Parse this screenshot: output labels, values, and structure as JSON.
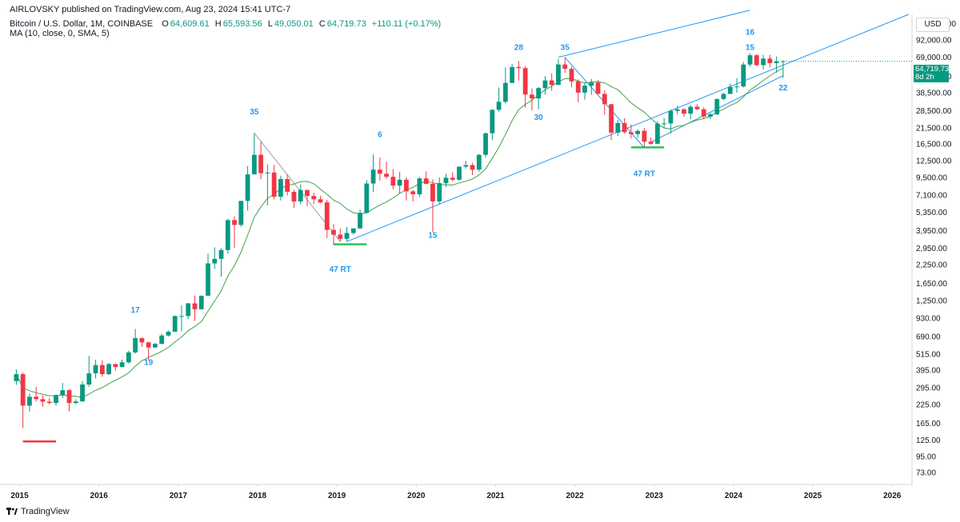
{
  "header": {
    "publisher": "AIRLOVSKY published on TradingView.com, Aug 23, 2024 15:41 UTC-7",
    "symbol": "Bitcoin / U.S. Dollar, 1M, COINBASE",
    "ohlc": [
      {
        "label": "O",
        "value": "64,609.61"
      },
      {
        "label": "H",
        "value": "65,593.56"
      },
      {
        "label": "L",
        "value": "49,050.01"
      },
      {
        "label": "C",
        "value": "64,719.73"
      },
      {
        "label": "",
        "value": "+110.11 (+0.17%)"
      }
    ],
    "indicator": "MA (10, close, 0, SMA, 5)"
  },
  "price_axis": {
    "currency": "USD",
    "current_price": "64,719.73",
    "countdown": "8d 2h",
    "current_price_color": "#089981"
  },
  "footer": {
    "brand": "TradingView"
  },
  "colors": {
    "up": "#089981",
    "down": "#f23645",
    "ma": "#43a047",
    "trendline": "#2196f3",
    "neutral_line": "#9e9e9e"
  },
  "chart_data": {
    "type": "candlestick",
    "title": "Bitcoin / U.S. Dollar, 1M, COINBASE",
    "scale": "log",
    "ylim": [
      60,
      140000
    ],
    "xlim": [
      "2014-11",
      "2026-03"
    ],
    "y_ticks": [
      "120,000.00",
      "92,000.00",
      "69,000.00",
      "50,500.00",
      "38,500.00",
      "28,500.00",
      "21,500.00",
      "16,500.00",
      "12,500.00",
      "9,500.00",
      "7,100.00",
      "5,350.00",
      "3,950.00",
      "2,950.00",
      "2,250.00",
      "1,650.00",
      "1,250.00",
      "930.00",
      "690.00",
      "515.00",
      "395.00",
      "295.00",
      "225.00",
      "165.00",
      "125.00",
      "95.00",
      "73.00"
    ],
    "y_tick_values": [
      120000,
      92000,
      69000,
      50500,
      38500,
      28500,
      21500,
      16500,
      12500,
      9500,
      7100,
      5350,
      3950,
      2950,
      2250,
      1650,
      1250,
      930,
      690,
      515,
      395,
      295,
      225,
      165,
      125,
      95,
      73
    ],
    "x_ticks": [
      "2015",
      "2016",
      "2017",
      "2018",
      "2019",
      "2020",
      "2021",
      "2022",
      "2023",
      "2024",
      "2025",
      "2026"
    ],
    "annotations": [
      {
        "text": "35",
        "date": "2017-12",
        "price": 27000,
        "color": "#2196f3"
      },
      {
        "text": "17",
        "date": "2016-06",
        "price": 1020,
        "color": "#2196f3"
      },
      {
        "text": "19",
        "date": "2016-08",
        "price": 430,
        "color": "#2196f3"
      },
      {
        "text": "6",
        "date": "2019-07",
        "price": 18500,
        "color": "#2196f3"
      },
      {
        "text": "47 RT",
        "date": "2019-01",
        "price": 2000,
        "color": "#2196f3"
      },
      {
        "text": "15",
        "date": "2020-03",
        "price": 3500,
        "color": "#2196f3"
      },
      {
        "text": "28",
        "date": "2021-04",
        "price": 78000,
        "color": "#2196f3"
      },
      {
        "text": "30",
        "date": "2021-07",
        "price": 24500,
        "color": "#2196f3"
      },
      {
        "text": "35",
        "date": "2021-11",
        "price": 78000,
        "color": "#2196f3"
      },
      {
        "text": "47 RT",
        "date": "2022-11",
        "price": 9700,
        "color": "#2196f3"
      },
      {
        "text": "16",
        "date": "2024-03",
        "price": 100000,
        "color": "#2196f3"
      },
      {
        "text": "15",
        "date": "2024-03",
        "price": 78000,
        "color": "#2196f3"
      },
      {
        "text": "22",
        "date": "2024-08",
        "price": 40000,
        "color": "#2196f3"
      }
    ],
    "candles": [
      {
        "d": "2014-12",
        "o": 330,
        "h": 400,
        "l": 310,
        "c": 370
      },
      {
        "d": "2015-01",
        "o": 370,
        "h": 380,
        "l": 152,
        "c": 220
      },
      {
        "d": "2015-02",
        "o": 220,
        "h": 270,
        "l": 200,
        "c": 255
      },
      {
        "d": "2015-03",
        "o": 255,
        "h": 300,
        "l": 235,
        "c": 245
      },
      {
        "d": "2015-04",
        "o": 245,
        "h": 260,
        "l": 215,
        "c": 235
      },
      {
        "d": "2015-05",
        "o": 235,
        "h": 250,
        "l": 225,
        "c": 230
      },
      {
        "d": "2015-06",
        "o": 230,
        "h": 265,
        "l": 220,
        "c": 262
      },
      {
        "d": "2015-07",
        "o": 262,
        "h": 320,
        "l": 250,
        "c": 284
      },
      {
        "d": "2015-08",
        "o": 284,
        "h": 290,
        "l": 200,
        "c": 230
      },
      {
        "d": "2015-09",
        "o": 230,
        "h": 245,
        "l": 225,
        "c": 236
      },
      {
        "d": "2015-10",
        "o": 236,
        "h": 330,
        "l": 235,
        "c": 312
      },
      {
        "d": "2015-11",
        "o": 312,
        "h": 500,
        "l": 300,
        "c": 375
      },
      {
        "d": "2015-12",
        "o": 375,
        "h": 470,
        "l": 345,
        "c": 430
      },
      {
        "d": "2016-01",
        "o": 430,
        "h": 465,
        "l": 355,
        "c": 370
      },
      {
        "d": "2016-02",
        "o": 370,
        "h": 445,
        "l": 365,
        "c": 437
      },
      {
        "d": "2016-03",
        "o": 437,
        "h": 440,
        "l": 392,
        "c": 416
      },
      {
        "d": "2016-04",
        "o": 416,
        "h": 470,
        "l": 415,
        "c": 450
      },
      {
        "d": "2016-05",
        "o": 450,
        "h": 545,
        "l": 440,
        "c": 530
      },
      {
        "d": "2016-06",
        "o": 530,
        "h": 780,
        "l": 520,
        "c": 670
      },
      {
        "d": "2016-07",
        "o": 670,
        "h": 680,
        "l": 580,
        "c": 625
      },
      {
        "d": "2016-08",
        "o": 625,
        "h": 630,
        "l": 465,
        "c": 575
      },
      {
        "d": "2016-09",
        "o": 575,
        "h": 620,
        "l": 570,
        "c": 610
      },
      {
        "d": "2016-10",
        "o": 610,
        "h": 720,
        "l": 605,
        "c": 700
      },
      {
        "d": "2016-11",
        "o": 700,
        "h": 760,
        "l": 690,
        "c": 745
      },
      {
        "d": "2016-12",
        "o": 745,
        "h": 975,
        "l": 740,
        "c": 965
      },
      {
        "d": "2017-01",
        "o": 965,
        "h": 1150,
        "l": 750,
        "c": 965
      },
      {
        "d": "2017-02",
        "o": 965,
        "h": 1200,
        "l": 920,
        "c": 1190
      },
      {
        "d": "2017-03",
        "o": 1190,
        "h": 1350,
        "l": 890,
        "c": 1080
      },
      {
        "d": "2017-04",
        "o": 1080,
        "h": 1350,
        "l": 1080,
        "c": 1350
      },
      {
        "d": "2017-05",
        "o": 1350,
        "h": 2700,
        "l": 1350,
        "c": 2300
      },
      {
        "d": "2017-06",
        "o": 2300,
        "h": 3000,
        "l": 2100,
        "c": 2480
      },
      {
        "d": "2017-07",
        "o": 2480,
        "h": 2950,
        "l": 1850,
        "c": 2870
      },
      {
        "d": "2017-08",
        "o": 2870,
        "h": 4800,
        "l": 2700,
        "c": 4700
      },
      {
        "d": "2017-09",
        "o": 4700,
        "h": 5000,
        "l": 2970,
        "c": 4340
      },
      {
        "d": "2017-10",
        "o": 4340,
        "h": 6450,
        "l": 4200,
        "c": 6450
      },
      {
        "d": "2017-11",
        "o": 6450,
        "h": 11500,
        "l": 5500,
        "c": 10000
      },
      {
        "d": "2017-12",
        "o": 10000,
        "h": 19800,
        "l": 10000,
        "c": 13800
      },
      {
        "d": "2018-01",
        "o": 13800,
        "h": 17200,
        "l": 9200,
        "c": 10200
      },
      {
        "d": "2018-02",
        "o": 10200,
        "h": 11800,
        "l": 6000,
        "c": 10300
      },
      {
        "d": "2018-03",
        "o": 10300,
        "h": 11700,
        "l": 6600,
        "c": 6920
      },
      {
        "d": "2018-04",
        "o": 6920,
        "h": 9800,
        "l": 6500,
        "c": 9250
      },
      {
        "d": "2018-05",
        "o": 9250,
        "h": 10000,
        "l": 7050,
        "c": 7500
      },
      {
        "d": "2018-06",
        "o": 7500,
        "h": 7750,
        "l": 5750,
        "c": 6390
      },
      {
        "d": "2018-07",
        "o": 6390,
        "h": 8500,
        "l": 6100,
        "c": 7730
      },
      {
        "d": "2018-08",
        "o": 7730,
        "h": 7750,
        "l": 5900,
        "c": 7000
      },
      {
        "d": "2018-09",
        "o": 7000,
        "h": 7400,
        "l": 6100,
        "c": 6625
      },
      {
        "d": "2018-10",
        "o": 6625,
        "h": 7000,
        "l": 6200,
        "c": 6300
      },
      {
        "d": "2018-11",
        "o": 6300,
        "h": 6550,
        "l": 3500,
        "c": 4000
      },
      {
        "d": "2018-12",
        "o": 4000,
        "h": 4400,
        "l": 3150,
        "c": 3700
      },
      {
        "d": "2019-01",
        "o": 3700,
        "h": 4100,
        "l": 3300,
        "c": 3450
      },
      {
        "d": "2019-02",
        "o": 3450,
        "h": 4200,
        "l": 3300,
        "c": 3800
      },
      {
        "d": "2019-03",
        "o": 3800,
        "h": 4100,
        "l": 3700,
        "c": 4100
      },
      {
        "d": "2019-04",
        "o": 4100,
        "h": 5600,
        "l": 4050,
        "c": 5300
      },
      {
        "d": "2019-05",
        "o": 5300,
        "h": 9100,
        "l": 5300,
        "c": 8600
      },
      {
        "d": "2019-06",
        "o": 8600,
        "h": 13900,
        "l": 7500,
        "c": 10800
      },
      {
        "d": "2019-07",
        "o": 10800,
        "h": 13200,
        "l": 9000,
        "c": 10100
      },
      {
        "d": "2019-08",
        "o": 10100,
        "h": 12300,
        "l": 9300,
        "c": 9600
      },
      {
        "d": "2019-09",
        "o": 9600,
        "h": 10900,
        "l": 7800,
        "c": 8300
      },
      {
        "d": "2019-10",
        "o": 8300,
        "h": 10400,
        "l": 7300,
        "c": 9150
      },
      {
        "d": "2019-11",
        "o": 9150,
        "h": 9500,
        "l": 6500,
        "c": 7550
      },
      {
        "d": "2019-12",
        "o": 7550,
        "h": 7750,
        "l": 6400,
        "c": 7200
      },
      {
        "d": "2020-01",
        "o": 7200,
        "h": 9600,
        "l": 6900,
        "c": 9350
      },
      {
        "d": "2020-02",
        "o": 9350,
        "h": 10500,
        "l": 8500,
        "c": 8550
      },
      {
        "d": "2020-03",
        "o": 8550,
        "h": 9200,
        "l": 3850,
        "c": 6400
      },
      {
        "d": "2020-04",
        "o": 6400,
        "h": 9500,
        "l": 6150,
        "c": 8650
      },
      {
        "d": "2020-05",
        "o": 8650,
        "h": 10100,
        "l": 8100,
        "c": 9450
      },
      {
        "d": "2020-06",
        "o": 9450,
        "h": 10400,
        "l": 8900,
        "c": 9150
      },
      {
        "d": "2020-07",
        "o": 9150,
        "h": 11400,
        "l": 9000,
        "c": 11350
      },
      {
        "d": "2020-08",
        "o": 11350,
        "h": 12500,
        "l": 11000,
        "c": 11650
      },
      {
        "d": "2020-09",
        "o": 11650,
        "h": 12100,
        "l": 9900,
        "c": 10800
      },
      {
        "d": "2020-10",
        "o": 10800,
        "h": 14000,
        "l": 10400,
        "c": 13800
      },
      {
        "d": "2020-11",
        "o": 13800,
        "h": 19900,
        "l": 13200,
        "c": 19700
      },
      {
        "d": "2020-12",
        "o": 19700,
        "h": 29300,
        "l": 17600,
        "c": 29000
      },
      {
        "d": "2021-01",
        "o": 29000,
        "h": 41900,
        "l": 28100,
        "c": 33100
      },
      {
        "d": "2021-02",
        "o": 33100,
        "h": 58300,
        "l": 32300,
        "c": 45200
      },
      {
        "d": "2021-03",
        "o": 45200,
        "h": 61800,
        "l": 45000,
        "c": 58800
      },
      {
        "d": "2021-04",
        "o": 58800,
        "h": 64900,
        "l": 47000,
        "c": 57700
      },
      {
        "d": "2021-05",
        "o": 57700,
        "h": 59500,
        "l": 30000,
        "c": 37300
      },
      {
        "d": "2021-06",
        "o": 37300,
        "h": 41300,
        "l": 28800,
        "c": 35000
      },
      {
        "d": "2021-07",
        "o": 35000,
        "h": 42400,
        "l": 29300,
        "c": 41500
      },
      {
        "d": "2021-08",
        "o": 41500,
        "h": 50500,
        "l": 37300,
        "c": 47100
      },
      {
        "d": "2021-09",
        "o": 47100,
        "h": 52900,
        "l": 39600,
        "c": 43800
      },
      {
        "d": "2021-10",
        "o": 43800,
        "h": 67000,
        "l": 43300,
        "c": 61300
      },
      {
        "d": "2021-11",
        "o": 61300,
        "h": 69000,
        "l": 53300,
        "c": 57000
      },
      {
        "d": "2021-12",
        "o": 57000,
        "h": 59100,
        "l": 42000,
        "c": 46300
      },
      {
        "d": "2022-01",
        "o": 46300,
        "h": 47900,
        "l": 32900,
        "c": 38500
      },
      {
        "d": "2022-02",
        "o": 38500,
        "h": 45800,
        "l": 34300,
        "c": 43200
      },
      {
        "d": "2022-03",
        "o": 43200,
        "h": 48200,
        "l": 37200,
        "c": 45500
      },
      {
        "d": "2022-04",
        "o": 45500,
        "h": 47400,
        "l": 37700,
        "c": 37700
      },
      {
        "d": "2022-05",
        "o": 37700,
        "h": 40000,
        "l": 26700,
        "c": 31800
      },
      {
        "d": "2022-06",
        "o": 31800,
        "h": 31900,
        "l": 17600,
        "c": 19900
      },
      {
        "d": "2022-07",
        "o": 19900,
        "h": 24600,
        "l": 18800,
        "c": 23300
      },
      {
        "d": "2022-08",
        "o": 23300,
        "h": 25200,
        "l": 19600,
        "c": 20050
      },
      {
        "d": "2022-09",
        "o": 20050,
        "h": 22800,
        "l": 18100,
        "c": 19420
      },
      {
        "d": "2022-10",
        "o": 19420,
        "h": 21000,
        "l": 18200,
        "c": 20500
      },
      {
        "d": "2022-11",
        "o": 20500,
        "h": 21500,
        "l": 15500,
        "c": 17150
      },
      {
        "d": "2022-12",
        "o": 17150,
        "h": 18400,
        "l": 16300,
        "c": 16550
      },
      {
        "d": "2023-01",
        "o": 16550,
        "h": 23900,
        "l": 16500,
        "c": 23100
      },
      {
        "d": "2023-02",
        "o": 23100,
        "h": 25300,
        "l": 21400,
        "c": 23150
      },
      {
        "d": "2023-03",
        "o": 23150,
        "h": 29200,
        "l": 19600,
        "c": 28500
      },
      {
        "d": "2023-04",
        "o": 28500,
        "h": 31000,
        "l": 26900,
        "c": 29250
      },
      {
        "d": "2023-05",
        "o": 29250,
        "h": 29800,
        "l": 25800,
        "c": 27200
      },
      {
        "d": "2023-06",
        "o": 27200,
        "h": 31400,
        "l": 24800,
        "c": 30500
      },
      {
        "d": "2023-07",
        "o": 30500,
        "h": 31800,
        "l": 28900,
        "c": 29250
      },
      {
        "d": "2023-08",
        "o": 29250,
        "h": 30200,
        "l": 25100,
        "c": 25950
      },
      {
        "d": "2023-09",
        "o": 25950,
        "h": 27500,
        "l": 24900,
        "c": 26950
      },
      {
        "d": "2023-10",
        "o": 26950,
        "h": 35000,
        "l": 26500,
        "c": 34650
      },
      {
        "d": "2023-11",
        "o": 34650,
        "h": 38400,
        "l": 34000,
        "c": 37700
      },
      {
        "d": "2023-12",
        "o": 37700,
        "h": 44700,
        "l": 37600,
        "c": 42300
      },
      {
        "d": "2024-01",
        "o": 42300,
        "h": 48900,
        "l": 38500,
        "c": 42600
      },
      {
        "d": "2024-02",
        "o": 42600,
        "h": 64000,
        "l": 41900,
        "c": 61200
      },
      {
        "d": "2024-03",
        "o": 61200,
        "h": 73800,
        "l": 59100,
        "c": 71300
      },
      {
        "d": "2024-04",
        "o": 71300,
        "h": 72800,
        "l": 59600,
        "c": 60600
      },
      {
        "d": "2024-05",
        "o": 60600,
        "h": 71900,
        "l": 56500,
        "c": 67500
      },
      {
        "d": "2024-06",
        "o": 67500,
        "h": 71900,
        "l": 58400,
        "c": 62700
      },
      {
        "d": "2024-07",
        "o": 62700,
        "h": 70000,
        "l": 53500,
        "c": 64600
      },
      {
        "d": "2024-08",
        "o": 64609.61,
        "h": 65593.56,
        "l": 49050.01,
        "c": 64719.73
      }
    ],
    "ma": {
      "name": "MA (10, close, 0, SMA, 5)",
      "period": 10
    }
  }
}
